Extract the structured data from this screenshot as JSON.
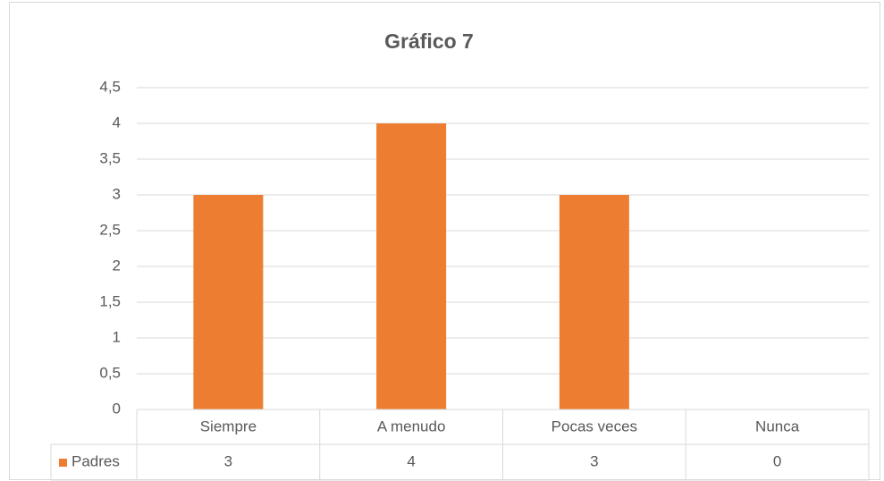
{
  "chart_data": {
    "type": "bar",
    "title": "Gráfico 7",
    "categories": [
      "Siempre",
      "A menudo",
      "Pocas veces",
      "Nunca"
    ],
    "series": [
      {
        "name": "Padres",
        "color": "#ed7d31",
        "values": [
          3,
          4,
          3,
          0
        ]
      }
    ],
    "ylim": [
      0,
      4.5
    ],
    "yticks": [
      0,
      {
        "value": 0.5,
        "label": "0,5"
      },
      1,
      {
        "value": 1.5,
        "label": "1,5"
      },
      2,
      {
        "value": 2.5,
        "label": "2,5"
      },
      3,
      {
        "value": 3.5,
        "label": "3,5"
      },
      4,
      {
        "value": 4.5,
        "label": "4,5"
      }
    ],
    "grid": true,
    "data_table": true
  }
}
